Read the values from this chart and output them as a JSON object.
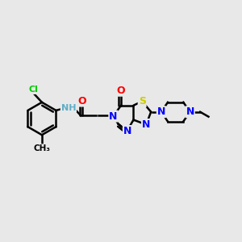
{
  "background_color": "#e8e8e8",
  "atom_colors": {
    "C": "#000000",
    "N": "#0000ff",
    "O": "#ff0000",
    "S": "#cccc00",
    "Cl": "#00cc00",
    "H": "#5eaec8"
  },
  "bond_color": "#000000",
  "bond_width": 1.8,
  "figure_size": [
    3.0,
    3.0
  ],
  "dpi": 100
}
